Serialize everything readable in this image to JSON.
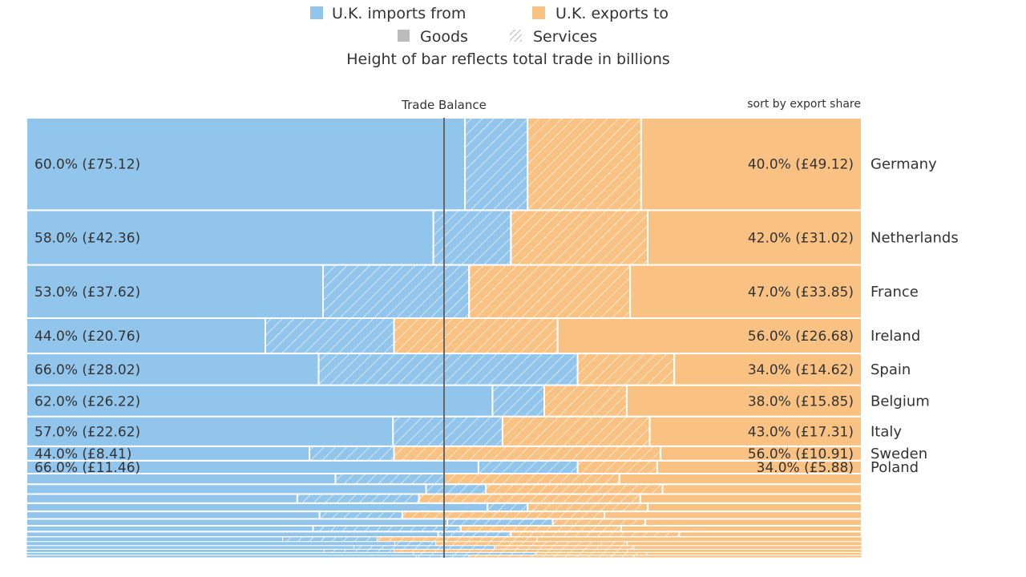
{
  "legend": {
    "imports_label": "U.K. imports from",
    "exports_label": "U.K. exports to",
    "goods_label": "Goods",
    "services_label": "Services",
    "subtitle": "Height of bar reflects total trade in billions"
  },
  "colors": {
    "imports": "#92c5eb",
    "exports": "#f9c283",
    "goods_legend": "#bbbbbb",
    "services_legend": "#bbbbbb",
    "balance_line": "#6b6b6b"
  },
  "chart_data": {
    "type": "bar",
    "subtype": "diverging-mekko",
    "title": "Height of bar reflects total trade in billions",
    "center_label": "Trade Balance",
    "sort_label": "sort by export share",
    "series": [
      {
        "name": "U.K. imports from",
        "components": [
          "Goods",
          "Services"
        ]
      },
      {
        "name": "U.K. exports to",
        "components": [
          "Goods",
          "Services"
        ]
      }
    ],
    "countries": [
      {
        "country": "Germany",
        "import_share": 60.0,
        "imports": 75.12,
        "import_label": "60.0% (£75.12)",
        "import_goods_frac": 0.875,
        "export_share": 40.0,
        "exports": 49.12,
        "export_label": "40.0% (£49.12)",
        "export_goods_frac": 0.66
      },
      {
        "country": "Netherlands",
        "import_share": 58.0,
        "imports": 42.36,
        "import_label": "58.0% (£42.36)",
        "import_goods_frac": 0.84,
        "export_share": 42.0,
        "exports": 31.02,
        "export_label": "42.0% (£31.02)",
        "export_goods_frac": 0.61
      },
      {
        "country": "France",
        "import_share": 53.0,
        "imports": 37.62,
        "import_label": "53.0% (£37.62)",
        "import_goods_frac": 0.67,
        "export_share": 47.0,
        "exports": 33.85,
        "export_label": "47.0% (£33.85)",
        "export_goods_frac": 0.59
      },
      {
        "country": "Ireland",
        "import_share": 44.0,
        "imports": 20.76,
        "import_label": "44.0% (£20.76)",
        "import_goods_frac": 0.65,
        "export_share": 56.0,
        "exports": 26.68,
        "export_label": "56.0% (£26.68)",
        "export_goods_frac": 0.65
      },
      {
        "country": "Spain",
        "import_share": 66.0,
        "imports": 28.02,
        "import_label": "66.0% (£28.02)",
        "import_goods_frac": 0.53,
        "export_share": 34.0,
        "exports": 14.62,
        "export_label": "34.0% (£14.62)",
        "export_goods_frac": 0.66
      },
      {
        "country": "Belgium",
        "import_share": 62.0,
        "imports": 26.22,
        "import_label": "62.0% (£26.22)",
        "import_goods_frac": 0.9,
        "export_share": 38.0,
        "exports": 15.85,
        "export_label": "38.0% (£15.85)",
        "export_goods_frac": 0.74
      },
      {
        "country": "Italy",
        "import_share": 57.0,
        "imports": 22.62,
        "import_label": "57.0% (£22.62)",
        "import_goods_frac": 0.77,
        "export_share": 43.0,
        "exports": 17.31,
        "export_label": "43.0% (£17.31)",
        "export_goods_frac": 0.59
      },
      {
        "country": "Sweden",
        "import_share": 44.0,
        "imports": 8.41,
        "import_label": "44.0% (£8.41)",
        "import_goods_frac": 0.77,
        "export_share": 56.0,
        "exports": 10.91,
        "export_label": "56.0% (£10.91)",
        "export_goods_frac": 0.43
      },
      {
        "country": "Poland",
        "import_share": 66.0,
        "imports": 11.46,
        "import_label": "66.0% (£11.46)",
        "import_goods_frac": 0.82,
        "export_share": 34.0,
        "exports": 5.88,
        "export_label": "34.0% (£5.88)",
        "export_goods_frac": 0.72
      }
    ],
    "minor_countries": [
      {
        "import_share": 50,
        "total": 5.0,
        "import_goods_frac": 0.74,
        "export_goods_frac": 0.58
      },
      {
        "import_share": 55,
        "total": 4.6,
        "import_goods_frac": 0.87,
        "export_goods_frac": 0.53
      },
      {
        "import_share": 47,
        "total": 4.3,
        "import_goods_frac": 0.69,
        "export_goods_frac": 0.5
      },
      {
        "import_share": 60,
        "total": 3.9,
        "import_goods_frac": 0.92,
        "export_goods_frac": 0.64
      },
      {
        "import_share": 45,
        "total": 3.5,
        "import_goods_frac": 0.78,
        "export_goods_frac": 0.56
      },
      {
        "import_share": 63,
        "total": 3.2,
        "import_goods_frac": 0.8,
        "export_goods_frac": 0.7
      },
      {
        "import_share": 52,
        "total": 2.8,
        "import_goods_frac": 0.66,
        "export_goods_frac": 0.6
      },
      {
        "import_share": 58,
        "total": 2.5,
        "import_goods_frac": 0.85,
        "export_goods_frac": 0.52
      },
      {
        "import_share": 42,
        "total": 2.2,
        "import_goods_frac": 0.73,
        "export_goods_frac": 0.67
      },
      {
        "import_share": 49,
        "total": 1.9,
        "import_goods_frac": 0.9,
        "export_goods_frac": 0.55
      },
      {
        "import_share": 56,
        "total": 1.7,
        "import_goods_frac": 0.7,
        "export_goods_frac": 0.62
      },
      {
        "import_share": 44,
        "total": 1.5,
        "import_goods_frac": 0.81,
        "export_goods_frac": 0.5
      },
      {
        "import_share": 61,
        "total": 1.3,
        "import_goods_frac": 0.76,
        "export_goods_frac": 0.66
      },
      {
        "import_share": 53,
        "total": 1.2,
        "import_goods_frac": 0.88,
        "export_goods_frac": 0.58
      }
    ],
    "xlim": [
      0,
      100
    ]
  }
}
